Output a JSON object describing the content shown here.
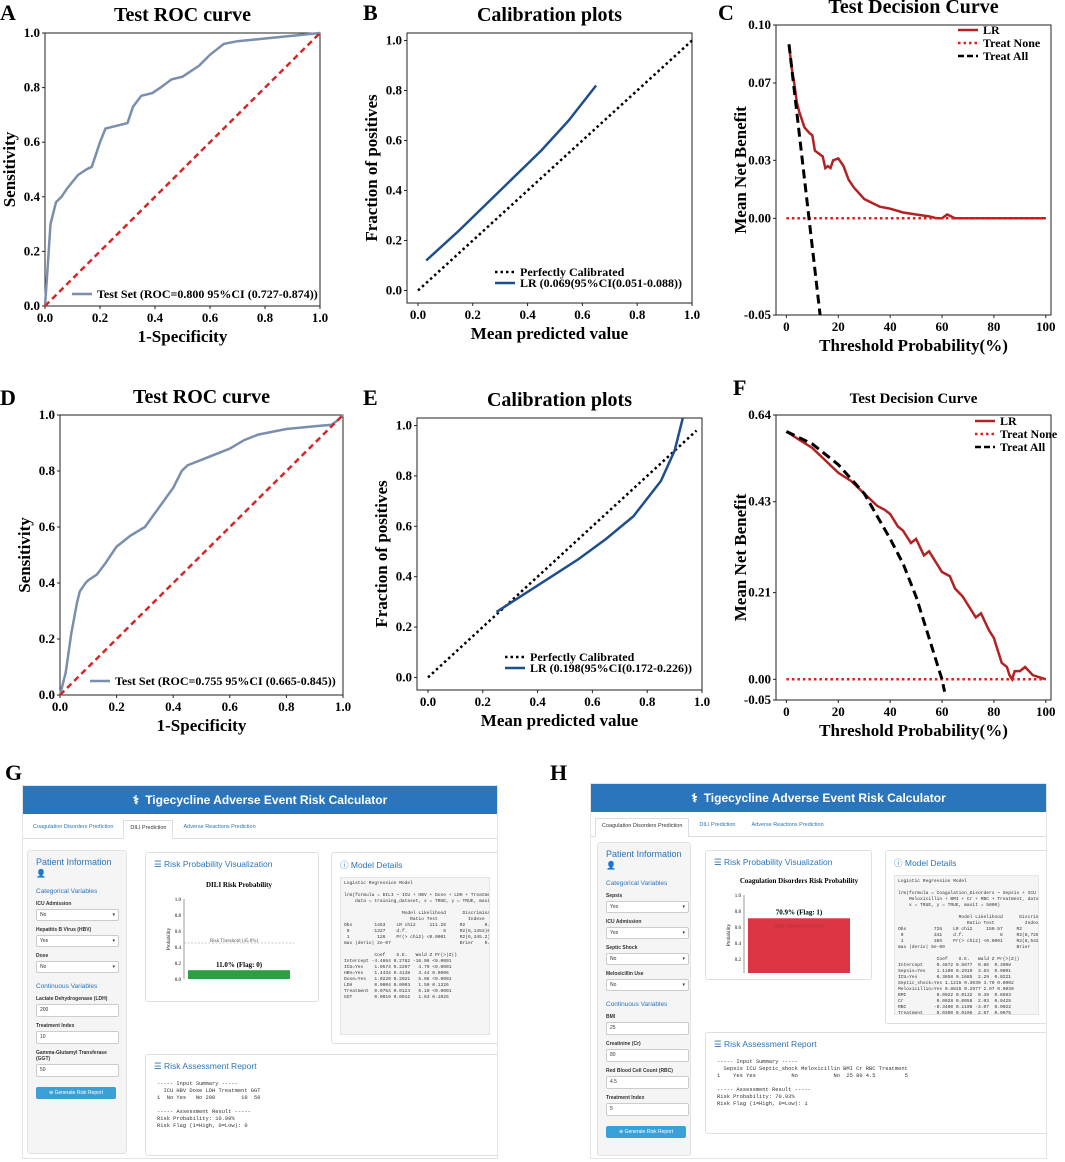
{
  "panel_labels": [
    "A",
    "B",
    "C",
    "D",
    "E",
    "F",
    "G",
    "H"
  ],
  "chart_data": [
    {
      "panel": "A",
      "type": "line",
      "title": "Test ROC curve",
      "xlabel": "1-Specificity",
      "ylabel": "Sensitivity",
      "xlim": [
        0,
        1
      ],
      "ylim": [
        0,
        1
      ],
      "xticks": [
        "0.0",
        "0.2",
        "0.4",
        "0.6",
        "0.8",
        "1.0"
      ],
      "yticks": [
        "0.0",
        "0.2",
        "0.4",
        "0.6",
        "0.8",
        "1.0"
      ],
      "series": [
        {
          "name": "Test Set (ROC=0.800 95%CI (0.727-0.874))",
          "color": "#7a8fad",
          "style": "solid",
          "x": [
            0,
            0.01,
            0.02,
            0.04,
            0.06,
            0.08,
            0.12,
            0.15,
            0.17,
            0.2,
            0.22,
            0.26,
            0.3,
            0.32,
            0.35,
            0.39,
            0.42,
            0.46,
            0.5,
            0.56,
            0.6,
            0.65,
            0.7,
            0.8,
            1.0
          ],
          "y": [
            0,
            0.15,
            0.3,
            0.38,
            0.4,
            0.43,
            0.48,
            0.5,
            0.51,
            0.6,
            0.65,
            0.66,
            0.67,
            0.73,
            0.77,
            0.78,
            0.8,
            0.83,
            0.84,
            0.88,
            0.92,
            0.96,
            0.97,
            0.98,
            1.0
          ]
        },
        {
          "name": "",
          "color": "#d62728",
          "style": "dashed",
          "x": [
            0,
            1
          ],
          "y": [
            0,
            1
          ]
        }
      ],
      "legend": "lower right"
    },
    {
      "panel": "B",
      "type": "line",
      "title": "Calibration plots",
      "xlabel": "Mean predicted value",
      "ylabel": "Fraction of positives",
      "xlim": [
        -0.04,
        1.0
      ],
      "ylim": [
        -0.05,
        1.03
      ],
      "xticks": [
        "0.0",
        "0.2",
        "0.4",
        "0.6",
        "0.8",
        "1.0"
      ],
      "yticks": [
        "0.0",
        "0.2",
        "0.4",
        "0.6",
        "0.8",
        "1.0"
      ],
      "series": [
        {
          "name": "Perfectly Calibrated",
          "color": "#000000",
          "style": "dotted",
          "x": [
            0,
            1
          ],
          "y": [
            0,
            1
          ]
        },
        {
          "name": "LR (0.069(95%CI(0.051-0.088))",
          "color": "#1f4e8c",
          "style": "solid",
          "x": [
            0.03,
            0.15,
            0.3,
            0.45,
            0.55,
            0.65
          ],
          "y": [
            0.12,
            0.24,
            0.4,
            0.56,
            0.68,
            0.82
          ]
        }
      ],
      "legend": "lower right"
    },
    {
      "panel": "C",
      "type": "line",
      "title": "Test Decision Curve",
      "xlabel": "Threshold Probability(%)",
      "ylabel": "Mean Net Benefit",
      "xlim": [
        -4,
        102
      ],
      "ylim": [
        -0.05,
        0.1
      ],
      "xticks": [
        "0",
        "20",
        "40",
        "60",
        "80",
        "100"
      ],
      "yticks": [
        "-0.05",
        "0.00",
        "0.03",
        "0.07",
        "0.10"
      ],
      "ytick_values": [
        -0.05,
        0,
        0.03,
        0.07,
        0.1
      ],
      "series": [
        {
          "name": "LR",
          "color": "#b22222",
          "style": "solid",
          "x": [
            1,
            2,
            3,
            4,
            5,
            7,
            9,
            10,
            11,
            12,
            13,
            14,
            15,
            16,
            17,
            18,
            20,
            22,
            24,
            26,
            28,
            30,
            33,
            36,
            40,
            45,
            50,
            55,
            58,
            60,
            62,
            65,
            70,
            75,
            80,
            90,
            100
          ],
          "y": [
            0.09,
            0.078,
            0.07,
            0.06,
            0.055,
            0.047,
            0.044,
            0.043,
            0.035,
            0.034,
            0.033,
            0.032,
            0.026,
            0.027,
            0.026,
            0.03,
            0.031,
            0.027,
            0.02,
            0.016,
            0.013,
            0.01,
            0.008,
            0.006,
            0.005,
            0.003,
            0.002,
            0.001,
            0,
            0,
            0.002,
            0,
            0,
            0,
            0,
            0,
            0
          ]
        },
        {
          "name": "Treat None",
          "color": "#e41a1c",
          "style": "dotted",
          "x": [
            0,
            100
          ],
          "y": [
            0,
            0
          ]
        },
        {
          "name": "Treat All",
          "color": "#000000",
          "style": "dashed",
          "x": [
            1,
            13
          ],
          "y": [
            0.09,
            -0.05
          ]
        }
      ],
      "legend": "upper right"
    },
    {
      "panel": "D",
      "type": "line",
      "title": "Test ROC curve",
      "xlabel": "1-Specificity",
      "ylabel": "Sensitivity",
      "xlim": [
        0,
        1
      ],
      "ylim": [
        0,
        1
      ],
      "xticks": [
        "0.0",
        "0.2",
        "0.4",
        "0.6",
        "0.8",
        "1.0"
      ],
      "yticks": [
        "0.0",
        "0.2",
        "0.4",
        "0.6",
        "0.8",
        "1.0"
      ],
      "series": [
        {
          "name": "Test Set (ROC=0.755 95%CI (0.665-0.845))",
          "color": "#7a8fad",
          "style": "solid",
          "x": [
            0,
            0.02,
            0.04,
            0.06,
            0.07,
            0.09,
            0.1,
            0.13,
            0.16,
            0.18,
            0.2,
            0.25,
            0.3,
            0.35,
            0.4,
            0.43,
            0.45,
            0.5,
            0.55,
            0.6,
            0.65,
            0.7,
            0.8,
            0.9,
            0.96,
            0.98,
            1.0
          ],
          "y": [
            0,
            0.08,
            0.22,
            0.33,
            0.37,
            0.4,
            0.41,
            0.43,
            0.47,
            0.5,
            0.53,
            0.57,
            0.6,
            0.67,
            0.74,
            0.8,
            0.82,
            0.84,
            0.86,
            0.88,
            0.91,
            0.93,
            0.95,
            0.96,
            0.965,
            0.98,
            1.0
          ]
        },
        {
          "name": "",
          "color": "#d62728",
          "style": "dashed",
          "x": [
            0,
            1
          ],
          "y": [
            0,
            1
          ]
        }
      ],
      "legend": "lower right"
    },
    {
      "panel": "E",
      "type": "line",
      "title": "Calibration plots",
      "xlabel": "Mean predicted value",
      "ylabel": "Fraction of positives",
      "xlim": [
        -0.04,
        1.0
      ],
      "ylim": [
        -0.05,
        1.03
      ],
      "xticks": [
        "0.0",
        "0.2",
        "0.4",
        "0.6",
        "0.8",
        "1.0"
      ],
      "yticks": [
        "0.0",
        "0.2",
        "0.4",
        "0.6",
        "0.8",
        "1.0"
      ],
      "series": [
        {
          "name": "Perfectly Calibrated",
          "color": "#000000",
          "style": "dotted",
          "x": [
            0,
            0.98
          ],
          "y": [
            0,
            0.98
          ]
        },
        {
          "name": "LR (0.198(95%CI(0.172-0.226))",
          "color": "#1f4e8c",
          "style": "solid",
          "x": [
            0.25,
            0.35,
            0.45,
            0.55,
            0.65,
            0.75,
            0.85,
            0.9,
            0.93
          ],
          "y": [
            0.26,
            0.33,
            0.4,
            0.47,
            0.55,
            0.64,
            0.78,
            0.9,
            1.03
          ]
        }
      ],
      "legend": "lower right"
    },
    {
      "panel": "F",
      "type": "line",
      "title": "Test Decision Curve",
      "xlabel": "Threshold Probability(%)",
      "ylabel": "Mean Net Benefit",
      "xlim": [
        -4,
        102
      ],
      "ylim": [
        -0.05,
        0.64
      ],
      "xticks": [
        "0",
        "20",
        "40",
        "60",
        "80",
        "100"
      ],
      "yticks": [
        "-0.05",
        "0.00",
        "0.21",
        "0.43",
        "0.64"
      ],
      "ytick_values": [
        -0.05,
        0,
        0.21,
        0.43,
        0.64
      ],
      "series": [
        {
          "name": "LR",
          "color": "#b22222",
          "style": "solid",
          "x": [
            0,
            5,
            10,
            15,
            20,
            25,
            30,
            35,
            38,
            40,
            43,
            45,
            48,
            50,
            53,
            55,
            58,
            60,
            63,
            65,
            68,
            70,
            73,
            75,
            78,
            80,
            82,
            83,
            85,
            86,
            87,
            88,
            90,
            92,
            95,
            100
          ],
          "y": [
            0.6,
            0.58,
            0.56,
            0.53,
            0.5,
            0.48,
            0.45,
            0.42,
            0.41,
            0.4,
            0.37,
            0.36,
            0.33,
            0.34,
            0.3,
            0.31,
            0.28,
            0.26,
            0.25,
            0.22,
            0.2,
            0.18,
            0.15,
            0.16,
            0.12,
            0.1,
            0.06,
            0.04,
            0.03,
            0.01,
            0,
            0.02,
            0.02,
            0.03,
            0.01,
            0
          ]
        },
        {
          "name": "Treat None",
          "color": "#e41a1c",
          "style": "dotted",
          "x": [
            0,
            100
          ],
          "y": [
            0,
            0
          ]
        },
        {
          "name": "Treat All",
          "color": "#000000",
          "style": "dashed",
          "x": [
            0,
            10,
            20,
            30,
            40,
            45,
            50,
            55,
            58,
            60,
            61
          ],
          "y": [
            0.6,
            0.57,
            0.52,
            0.45,
            0.34,
            0.28,
            0.2,
            0.1,
            0.04,
            0.0,
            -0.03
          ]
        }
      ],
      "legend": "upper right"
    }
  ],
  "app_g": {
    "header": "Tigecycline Adverse Event Risk Calculator",
    "tabs": [
      "Coagulation Disorders Prediction",
      "DILI Prediction",
      "Adverse Reactions Prediction"
    ],
    "sidebar_title": "Patient Information",
    "cat_title": "Categorical Variables",
    "cat_fields": [
      {
        "label": "ICU Admission",
        "value": "No"
      },
      {
        "label": "Hepatitis B Virus (HBV)",
        "value": "Yes"
      },
      {
        "label": "Dose",
        "value": "No"
      }
    ],
    "cont_title": "Continuous Variables",
    "cont_fields": [
      {
        "label": "Lactate Dehydrogenase (LDH)",
        "value": "200"
      },
      {
        "label": "Treatment Index",
        "value": "10"
      },
      {
        "label": "Gamma-Glutamyl Transferase (GGT)",
        "value": "50"
      }
    ],
    "button": "Generate Risk Report",
    "viz_title": "Risk Probability Visualization",
    "chart_title": "DILI Risk Probability",
    "y_label": "Probability",
    "y_ticks": [
      "1.0",
      "0.8",
      "0.6",
      "0.4",
      "0.2",
      "0.0"
    ],
    "threshold_label": "Risk Threshold (45.0%)",
    "threshold": 0.45,
    "bar_label": "11.0% (Flag: 0)",
    "probability": 0.11,
    "bar_color": "#2e9e44",
    "model_title": "Model Details",
    "model_text": "Logistic Regression Model\n\nlrm(formula = DILI ~ ICU + HBV + Dose + LDH + Treatment +\n    data = training_dataset, x = TRUE, y = TRUE, maxit = 1\n\n                     Model Likelihood      Discriminatio\n                        Ratio Test           Indexe\nObs        1453    LR chi2     111.28     R2       0.1\n 0         1327    d.f.             6     R2(6,1453)0.0\n 1          126    Pr(> chi2) <0.0001     R2(6,345.2)0.\nmax |deriv| 2e-07                         Brier    0.0\n\n           Coef    S.E.   Wald Z Pr(>|Z|)\nIntercept -4.4664 0.2782 -16.06 <0.0001\nICU=Yes    1.0574 0.2207   4.79 <0.0001\nHBV=Yes    1.4434 0.4138   3.44 0.0006\nDose=Yes   1.0220 0.2021   5.06 <0.0001\nLDH        0.0004 0.0003   1.50 0.1326\nTreatment  0.0754 0.0124   6.10 <0.0001\nGGT        0.0019 0.0012   1.63 0.1025",
    "report_title": "Risk Assessment Report",
    "report_text": "----- Input Summary -----\n  ICU HBV Dose LDH Treatment GGT\n1  No Yes   No 200        10  50\n\n----- Assessment Result -----\nRisk Probability: 10.99%\nRisk Flag (1=High, 0=Low): 0"
  },
  "app_h": {
    "header": "Tigecycline Adverse Event Risk Calculator",
    "tabs": [
      "Coagulation Disorders Prediction",
      "DILI Prediction",
      "Adverse Reactions Prediction"
    ],
    "sidebar_title": "Patient Information",
    "cat_title": "Categorical Variables",
    "cat_fields": [
      {
        "label": "Sepsis",
        "value": "Yes"
      },
      {
        "label": "ICU Admission",
        "value": "Yes"
      },
      {
        "label": "Septic Shock",
        "value": "No"
      },
      {
        "label": "Meloxicillin Use",
        "value": "No"
      }
    ],
    "cont_title": "Continuous Variables",
    "cont_fields": [
      {
        "label": "BMI",
        "value": "25"
      },
      {
        "label": "Creatinine (Cr)",
        "value": "80"
      },
      {
        "label": "Red Blood Cell Count (RBC)",
        "value": "4.5"
      },
      {
        "label": "Treatment Index",
        "value": "5"
      }
    ],
    "button": "Generate Risk Report",
    "viz_title": "Risk Probability Visualization",
    "chart_title": "Coagulation Disorders Risk Probability",
    "y_label": "Probability",
    "y_ticks": [
      "1.0",
      "0.8",
      "0.6",
      "0.4",
      "0.2",
      "0.0"
    ],
    "bar_label": "70.9% (Flag: 1)",
    "inner_label": "Risk Threshold (50.0%)",
    "probability": 0.709,
    "bar_color": "#dc3545",
    "model_title": "Model Details",
    "model_text": "Logistic Regression Model\n\nlrm(formula = Coagulation_Disorders ~ Sepsis + ICU + Septi\n    Meloxicillin + BMI + Cr + RBC + Treatment, data = tra\n    x = TRUE, y = TRUE, maxit = 5000)\n\n                      Model Likelihood      Discriminati\n                         Ratio Test           Index\nObs          726    LR chi2     150.57     R2       0.2\n 0           341    d.f.             8     R2(8,726)0.1\n 1           385    Pr(> chi2) <0.0001     R2(8,542.5)0.1\nmax |deriv| 5e-09                          Brier    0.2\n\n              Coef    S.E.   Wald Z Pr(>|Z|)\nIntercept     0.4872 0.5677  0.86  0.3908\nSepsis=Yes    1.1100 0.2910  3.83  0.0001\nICU=Yes       0.3858 0.1685  2.29  0.0221\nSeptic_shock=Yes 1.1215 0.3039 3.70 0.0002\nMeloxicillin=Yes 0.8815 0.2977 2.97 0.0030\nBMI           0.0022 0.0132  0.39  0.6983\nCr            0.0028 0.0058  2.03  0.0425\nRBC          -0.3400 0.1108 -3.07  0.0022\nTreatment     0.0300 0.0106  2.67  0.0075",
    "report_title": "Risk Assessment Report",
    "report_text": "----- Input Summary -----\n  Sepsis ICU Septic_shock Meloxicillin BMI Cr RBC Treatment\n1    Yes Yes           No           No  25 80 4.5         5\n\n----- Assessment Result -----\nRisk Probability: 70.93%\nRisk Flag (1=High, 0=Low): 1"
  }
}
